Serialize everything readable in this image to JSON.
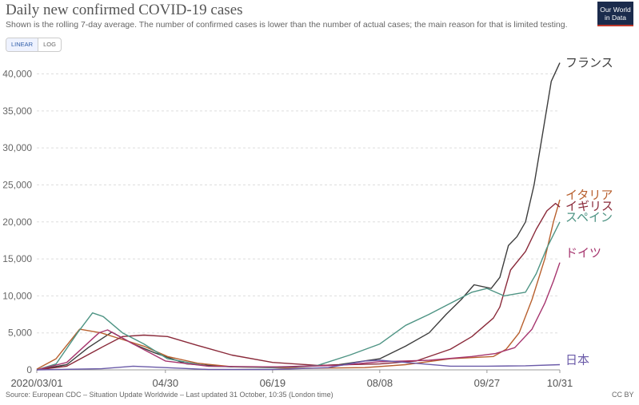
{
  "header": {
    "title": "Daily new confirmed COVID-19 cases",
    "subtitle": "Shown is the rolling 7-day average. The number of confirmed cases is lower than the number of actual cases; the main reason for that is limited testing.",
    "logo_line1": "Our World",
    "logo_line2": "in Data"
  },
  "scale_toggle": {
    "linear_label": "LINEAR",
    "log_label": "LOG",
    "selected": "LINEAR"
  },
  "footer": {
    "source": "Source: European CDC – Situation Update Worldwide – Last updated 31 October, 10:35 (London time)",
    "license": "CC BY"
  },
  "chart_data": {
    "type": "line",
    "title": "Daily new confirmed COVID-19 cases",
    "x_tick_labels": [
      "2020/03/01",
      "04/30",
      "06/19",
      "08/08",
      "09/27",
      "10/31"
    ],
    "x_tick_dates": [
      "2020-03-01",
      "2020-04-30",
      "2020-06-19",
      "2020-08-08",
      "2020-09-27",
      "2020-10-31"
    ],
    "y_ticks": [
      0,
      5000,
      10000,
      15000,
      20000,
      25000,
      30000,
      35000,
      40000
    ],
    "y_tick_labels": [
      "0",
      "5,000",
      "10,000",
      "15,000",
      "20,000",
      "25,000",
      "30,000",
      "35,000",
      "40,000"
    ],
    "ylim": [
      0,
      42000
    ],
    "grid": "horizontal-dashed",
    "series": [
      {
        "name": "フランス",
        "color": "#3d3d3d",
        "points": [
          [
            "2020-03-01",
            0
          ],
          [
            "2020-03-15",
            700
          ],
          [
            "2020-03-25",
            3000
          ],
          [
            "2020-04-05",
            5100
          ],
          [
            "2020-04-15",
            3500
          ],
          [
            "2020-04-25",
            2300
          ],
          [
            "2020-05-10",
            800
          ],
          [
            "2020-05-31",
            400
          ],
          [
            "2020-06-30",
            400
          ],
          [
            "2020-07-20",
            700
          ],
          [
            "2020-08-08",
            1500
          ],
          [
            "2020-08-20",
            3200
          ],
          [
            "2020-08-31",
            5000
          ],
          [
            "2020-09-08",
            7500
          ],
          [
            "2020-09-15",
            9500
          ],
          [
            "2020-09-21",
            11500
          ],
          [
            "2020-09-29",
            11000
          ],
          [
            "2020-10-03",
            12500
          ],
          [
            "2020-10-07",
            16800
          ],
          [
            "2020-10-11",
            18000
          ],
          [
            "2020-10-15",
            20000
          ],
          [
            "2020-10-19",
            25000
          ],
          [
            "2020-10-23",
            32000
          ],
          [
            "2020-10-27",
            39000
          ],
          [
            "2020-10-31",
            41500
          ]
        ]
      },
      {
        "name": "イタリア",
        "color": "#b8602e",
        "points": [
          [
            "2020-03-01",
            100
          ],
          [
            "2020-03-10",
            1500
          ],
          [
            "2020-03-21",
            5500
          ],
          [
            "2020-03-31",
            5000
          ],
          [
            "2020-04-10",
            4100
          ],
          [
            "2020-04-20",
            3200
          ],
          [
            "2020-05-01",
            1800
          ],
          [
            "2020-05-15",
            900
          ],
          [
            "2020-06-01",
            400
          ],
          [
            "2020-07-01",
            200
          ],
          [
            "2020-08-01",
            300
          ],
          [
            "2020-08-20",
            700
          ],
          [
            "2020-09-10",
            1500
          ],
          [
            "2020-09-30",
            1800
          ],
          [
            "2020-10-06",
            2800
          ],
          [
            "2020-10-12",
            5000
          ],
          [
            "2020-10-18",
            9500
          ],
          [
            "2020-10-24",
            15000
          ],
          [
            "2020-10-28",
            20000
          ],
          [
            "2020-10-31",
            23000
          ]
        ]
      },
      {
        "name": "イギリス",
        "color": "#8a2a3a",
        "points": [
          [
            "2020-03-01",
            0
          ],
          [
            "2020-03-15",
            500
          ],
          [
            "2020-03-31",
            3000
          ],
          [
            "2020-04-10",
            4500
          ],
          [
            "2020-04-20",
            4700
          ],
          [
            "2020-05-01",
            4500
          ],
          [
            "2020-05-15",
            3300
          ],
          [
            "2020-05-31",
            2000
          ],
          [
            "2020-06-19",
            1000
          ],
          [
            "2020-07-10",
            600
          ],
          [
            "2020-08-08",
            800
          ],
          [
            "2020-08-25",
            1200
          ],
          [
            "2020-09-10",
            2800
          ],
          [
            "2020-09-20",
            4500
          ],
          [
            "2020-09-30",
            7000
          ],
          [
            "2020-10-03",
            8500
          ],
          [
            "2020-10-08",
            13500
          ],
          [
            "2020-10-15",
            16000
          ],
          [
            "2020-10-20",
            19000
          ],
          [
            "2020-10-25",
            21500
          ],
          [
            "2020-10-29",
            22500
          ],
          [
            "2020-10-31",
            22000
          ]
        ]
      },
      {
        "name": "スペイン",
        "color": "#4e9484",
        "points": [
          [
            "2020-03-01",
            0
          ],
          [
            "2020-03-10",
            800
          ],
          [
            "2020-03-20",
            5000
          ],
          [
            "2020-03-27",
            7700
          ],
          [
            "2020-04-01",
            7200
          ],
          [
            "2020-04-10",
            5000
          ],
          [
            "2020-04-20",
            3500
          ],
          [
            "2020-05-01",
            1500
          ],
          [
            "2020-05-20",
            500
          ],
          [
            "2020-06-19",
            300
          ],
          [
            "2020-07-10",
            600
          ],
          [
            "2020-07-25",
            2000
          ],
          [
            "2020-08-08",
            3500
          ],
          [
            "2020-08-20",
            6000
          ],
          [
            "2020-08-31",
            7500
          ],
          [
            "2020-09-10",
            9000
          ],
          [
            "2020-09-20",
            10500
          ],
          [
            "2020-09-27",
            11000
          ],
          [
            "2020-10-05",
            10000
          ],
          [
            "2020-10-15",
            10500
          ],
          [
            "2020-10-20",
            13000
          ],
          [
            "2020-10-25",
            16500
          ],
          [
            "2020-10-31",
            20000
          ]
        ]
      },
      {
        "name": "ドイツ",
        "color": "#a6356e",
        "points": [
          [
            "2020-03-01",
            0
          ],
          [
            "2020-03-15",
            1000
          ],
          [
            "2020-03-30",
            5000
          ],
          [
            "2020-04-03",
            5400
          ],
          [
            "2020-04-15",
            3500
          ],
          [
            "2020-04-30",
            1200
          ],
          [
            "2020-05-20",
            500
          ],
          [
            "2020-06-19",
            400
          ],
          [
            "2020-07-20",
            600
          ],
          [
            "2020-08-08",
            1100
          ],
          [
            "2020-08-31",
            1300
          ],
          [
            "2020-09-20",
            1800
          ],
          [
            "2020-10-01",
            2200
          ],
          [
            "2020-10-10",
            3000
          ],
          [
            "2020-10-18",
            5500
          ],
          [
            "2020-10-24",
            9000
          ],
          [
            "2020-10-28",
            12000
          ],
          [
            "2020-10-31",
            14500
          ]
        ]
      },
      {
        "name": "日本",
        "color": "#6a5aa8",
        "points": [
          [
            "2020-03-01",
            0
          ],
          [
            "2020-03-31",
            150
          ],
          [
            "2020-04-15",
            500
          ],
          [
            "2020-04-30",
            300
          ],
          [
            "2020-05-20",
            50
          ],
          [
            "2020-06-19",
            50
          ],
          [
            "2020-07-15",
            300
          ],
          [
            "2020-08-01",
            1200
          ],
          [
            "2020-08-08",
            1300
          ],
          [
            "2020-08-20",
            1000
          ],
          [
            "2020-09-10",
            500
          ],
          [
            "2020-09-27",
            500
          ],
          [
            "2020-10-15",
            550
          ],
          [
            "2020-10-31",
            700
          ]
        ]
      }
    ]
  }
}
